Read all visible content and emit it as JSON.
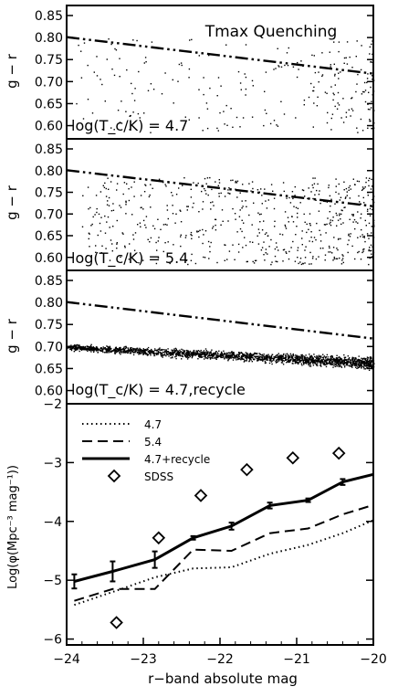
{
  "chart_data": [
    {
      "type": "scatter",
      "panel_label": "log(T_c/K) = 4.7",
      "annotation": "Tmax Quenching",
      "ylabel": "g − r",
      "xlim": [
        -24,
        -20
      ],
      "ylim": [
        0.57,
        0.85
      ],
      "yticks": [
        "0.60",
        "0.65",
        "0.70",
        "0.75",
        "0.80",
        "0.85"
      ],
      "reference_line": {
        "style": "dash-dot-dot",
        "x": [
          -24,
          -20
        ],
        "y": [
          0.801,
          0.718
        ]
      },
      "point_density": "sparse, concentrated near x ≈ -20.5 to -20 and y ≈ 0.70 to 0.80"
    },
    {
      "type": "scatter",
      "panel_label": "log(T_c/K) = 5.4",
      "ylabel": "g − r",
      "xlim": [
        -24,
        -20
      ],
      "ylim": [
        0.57,
        0.85
      ],
      "yticks": [
        "0.60",
        "0.65",
        "0.70",
        "0.75",
        "0.80",
        "0.85"
      ],
      "reference_line": {
        "style": "dash-dot-dot",
        "x": [
          -24,
          -20
        ],
        "y": [
          0.801,
          0.718
        ]
      },
      "point_density": "moderate, concentrated at x > -22 spanning y ≈ 0.58 to 0.78"
    },
    {
      "type": "scatter",
      "panel_label": "log(T_c/K) = 4.7,recycle",
      "ylabel": "g − r",
      "xlim": [
        -24,
        -20
      ],
      "ylim": [
        0.57,
        0.85
      ],
      "yticks": [
        "0.60",
        "0.65",
        "0.70",
        "0.75",
        "0.80",
        "0.85"
      ],
      "reference_line": {
        "style": "dash-dot-dot",
        "x": [
          -24,
          -20
        ],
        "y": [
          0.801,
          0.718
        ]
      },
      "point_density": "dense tight sequence from y ≈ 0.70 at x = -24 to y ≈ 0.66 at x = -20"
    },
    {
      "type": "line",
      "xlabel": "r−band absolute mag",
      "ylabel": "Log(φ(Mpc⁻³ mag⁻¹))",
      "xlim": [
        -24,
        -20
      ],
      "ylim": [
        -6.1,
        -2
      ],
      "xticks": [
        "−24",
        "−23",
        "−22",
        "−21",
        "−20"
      ],
      "yticks": [
        "−6",
        "−5",
        "−4",
        "−3",
        "−2"
      ],
      "legend": "top-left",
      "series": [
        {
          "name": "4.7",
          "style": "dotted",
          "x": [
            -23.9,
            -23.4,
            -22.85,
            -22.35,
            -21.85,
            -21.35,
            -20.85,
            -20.4,
            -20.0
          ],
          "y": [
            -5.42,
            -5.2,
            -4.95,
            -4.8,
            -4.78,
            -4.55,
            -4.4,
            -4.2,
            -3.98
          ]
        },
        {
          "name": "5.4",
          "style": "dashed",
          "x": [
            -23.9,
            -23.4,
            -22.85,
            -22.35,
            -21.85,
            -21.35,
            -20.85,
            -20.4,
            -20.0
          ],
          "y": [
            -5.35,
            -5.15,
            -5.15,
            -4.48,
            -4.5,
            -4.2,
            -4.12,
            -3.88,
            -3.72
          ]
        },
        {
          "name": "4.7+recycle",
          "style": "solid",
          "x": [
            -23.9,
            -23.4,
            -22.85,
            -22.35,
            -21.85,
            -21.35,
            -20.85,
            -20.4,
            -20.0
          ],
          "y": [
            -5.02,
            -4.85,
            -4.65,
            -4.28,
            -4.08,
            -3.73,
            -3.64,
            -3.33,
            -3.2
          ],
          "err": [
            0.12,
            0.17,
            0.14,
            0.03,
            0.06,
            0.05,
            0.03,
            0.05,
            0.0
          ]
        },
        {
          "name": "SDSS",
          "style": "diamond",
          "x": [
            -23.35,
            -22.8,
            -22.25,
            -21.65,
            -21.05,
            -20.45
          ],
          "y": [
            -5.72,
            -4.28,
            -3.56,
            -3.12,
            -2.92,
            -2.84
          ]
        }
      ]
    }
  ]
}
